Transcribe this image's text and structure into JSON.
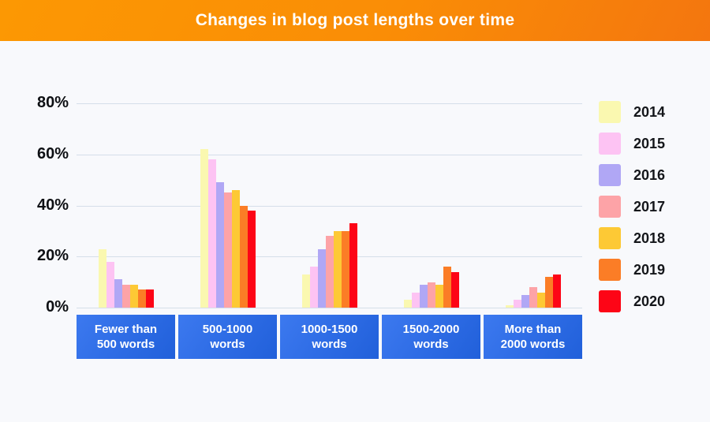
{
  "header": {
    "title": "Changes in blog post lengths over time",
    "background_colors": [
      "#FC9803",
      "#F4760F"
    ],
    "text_color": "#FFFFFF"
  },
  "colors": {
    "page_background": "#F8F9FC",
    "gridline": "#D5DEE9",
    "axis_label": "#0E1014",
    "category_box_gradient": [
      "#3C79EF",
      "#2160DA"
    ],
    "category_text": "#FFFFFF"
  },
  "chart_data": {
    "type": "bar",
    "title": "Changes in blog post lengths over time",
    "xlabel": "",
    "ylabel": "",
    "ylim": [
      0,
      80
    ],
    "grid": true,
    "legend_position": "right",
    "yticks": [
      "80%",
      "60%",
      "40%",
      "20%",
      "0%"
    ],
    "ytick_values": [
      80,
      60,
      40,
      20,
      0
    ],
    "categories": [
      "Fewer than 500 words",
      "500-1000 words",
      "1000-1500 words",
      "1500-2000 words",
      "More than 2000 words"
    ],
    "category_label_lines": [
      [
        "Fewer than",
        "500 words"
      ],
      [
        "500-1000",
        "words"
      ],
      [
        "1000-1500",
        "words"
      ],
      [
        "1500-2000",
        "words"
      ],
      [
        "More than",
        "2000 words"
      ]
    ],
    "series": [
      {
        "name": "2014",
        "color": "#FAF8B0",
        "values": [
          23,
          62,
          13,
          3,
          1
        ]
      },
      {
        "name": "2015",
        "color": "#FDC3F3",
        "values": [
          18,
          58,
          16,
          6,
          3
        ]
      },
      {
        "name": "2016",
        "color": "#B0A7F5",
        "values": [
          11,
          49,
          23,
          9,
          5
        ]
      },
      {
        "name": "2017",
        "color": "#FDA3A7",
        "values": [
          9,
          45,
          28,
          10,
          8
        ]
      },
      {
        "name": "2018",
        "color": "#FDC935",
        "values": [
          9,
          46,
          30,
          9,
          6
        ]
      },
      {
        "name": "2019",
        "color": "#FB7D26",
        "values": [
          7,
          40,
          30,
          16,
          12
        ]
      },
      {
        "name": "2020",
        "color": "#FD0516",
        "values": [
          7,
          38,
          33,
          14,
          13
        ]
      }
    ]
  }
}
